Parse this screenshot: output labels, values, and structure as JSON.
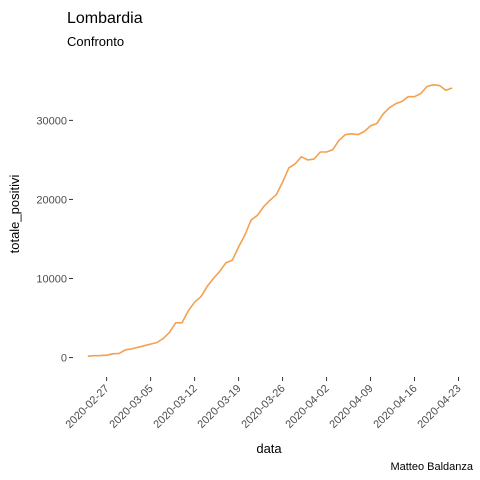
{
  "chart_data": {
    "type": "line",
    "title": "Lombardia",
    "subtitle": "Confronto",
    "xlabel": "data",
    "ylabel": "totale_positivi",
    "caption": "Matteo Baldanza",
    "grid": false,
    "legend": "none",
    "line_color": "#f4a050",
    "xlim": [
      "2020-02-24",
      "2020-04-22"
    ],
    "ylim": [
      0,
      34800
    ],
    "x_ticks": [
      "2020-02-27",
      "2020-03-05",
      "2020-03-12",
      "2020-03-19",
      "2020-03-26",
      "2020-04-02",
      "2020-04-09",
      "2020-04-16",
      "2020-04-23"
    ],
    "y_ticks": [
      0,
      10000,
      20000,
      30000
    ],
    "series": [
      {
        "x": [
          "2020-02-24",
          "2020-02-25",
          "2020-02-26",
          "2020-02-27",
          "2020-02-28",
          "2020-02-29",
          "2020-03-01",
          "2020-03-02",
          "2020-03-03",
          "2020-03-04",
          "2020-03-05",
          "2020-03-06",
          "2020-03-07",
          "2020-03-08",
          "2020-03-09",
          "2020-03-10",
          "2020-03-11",
          "2020-03-12",
          "2020-03-13",
          "2020-03-14",
          "2020-03-15",
          "2020-03-16",
          "2020-03-17",
          "2020-03-18",
          "2020-03-19",
          "2020-03-20",
          "2020-03-21",
          "2020-03-22",
          "2020-03-23",
          "2020-03-24",
          "2020-03-25",
          "2020-03-26",
          "2020-03-27",
          "2020-03-28",
          "2020-03-29",
          "2020-03-30",
          "2020-03-31",
          "2020-04-01",
          "2020-04-02",
          "2020-04-03",
          "2020-04-04",
          "2020-04-05",
          "2020-04-06",
          "2020-04-07",
          "2020-04-08",
          "2020-04-09",
          "2020-04-10",
          "2020-04-11",
          "2020-04-12",
          "2020-04-13",
          "2020-04-14",
          "2020-04-15",
          "2020-04-16",
          "2020-04-17",
          "2020-04-18",
          "2020-04-19",
          "2020-04-20",
          "2020-04-21",
          "2020-04-22"
        ],
        "y": [
          170,
          230,
          250,
          300,
          480,
          520,
          980,
          1100,
          1300,
          1500,
          1700,
          1900,
          2400,
          3200,
          4400,
          4400,
          5900,
          7000,
          7700,
          9000,
          10000,
          10900,
          12000,
          12300,
          14000,
          15500,
          17400,
          18000,
          19100,
          19900,
          20600,
          22200,
          24000,
          24500,
          25400,
          25000,
          25100,
          26000,
          26000,
          26300,
          27500,
          28200,
          28300,
          28200,
          28600,
          29300,
          29600,
          30800,
          31600,
          32100,
          32400,
          33000,
          33000,
          33400,
          34300,
          34500,
          34400,
          33800,
          34100
        ]
      }
    ]
  }
}
